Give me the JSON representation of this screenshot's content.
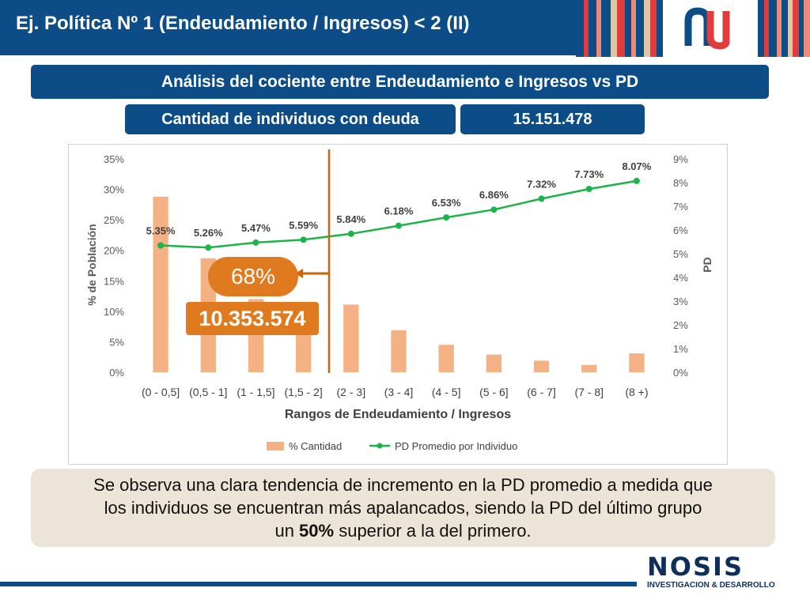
{
  "slide": {
    "title": "Ej. Política Nº 1 (Endeudamiento / Ingresos) < 2 (II)",
    "subtitle": "Análisis del cociente entre Endeudamiento e Ingresos vs PD",
    "count_label": "Cantidad de individuos con deuda",
    "count_value": "15.151.478",
    "callout_percent": "68%",
    "callout_count": "10.353.574",
    "conclusion_line1": "Se observa una clara tendencia de incremento en la PD promedio a medida que",
    "conclusion_line2": "los individuos se encuentran más apalancados, siendo la PD del último grupo",
    "conclusion_pre": "un ",
    "conclusion_bold": "50%",
    "conclusion_post": " superior a la del primero.",
    "footer_brand": "NOSIS",
    "footer_tagline": "INVESTIGACION & DESARROLLO"
  },
  "colors": {
    "navy": "#0d4d87",
    "bar": "#f4b183",
    "line": "#1db34b",
    "callout": "#c9650f",
    "callout_bg": "#e07a1f",
    "conclusion_bg": "#ece4d6",
    "stripe_red": "#e03c3c",
    "stripe_salmon": "#ef8a78",
    "stripe_beige": "#d9c9a8"
  },
  "chart_data": {
    "type": "bar",
    "categories": [
      "(0 - 0,5]",
      "(0,5 - 1]",
      "(1 - 1,5]",
      "(1,5 - 2]",
      "(2 - 3]",
      "(3 - 4]",
      "(4 - 5]",
      "(5 - 6]",
      "(6 - 7]",
      "(7 - 8]",
      "(8 +)"
    ],
    "series": [
      {
        "name": "% Cantidad",
        "type": "bar",
        "axis": "left",
        "values": [
          28.8,
          18.7,
          12.0,
          8.0,
          11.1,
          6.9,
          4.5,
          2.9,
          1.9,
          1.2,
          3.1
        ]
      },
      {
        "name": "PD Promedio por Individuo",
        "type": "line",
        "axis": "right",
        "values": [
          5.35,
          5.26,
          5.47,
          5.59,
          5.84,
          6.18,
          6.53,
          6.86,
          7.32,
          7.73,
          8.07
        ],
        "labels": [
          "5.35%",
          "5.26%",
          "5.47%",
          "5.59%",
          "5.84%",
          "6.18%",
          "6.53%",
          "6.86%",
          "7.32%",
          "7.73%",
          "8.07%"
        ]
      }
    ],
    "xlabel": "Rangos de Endeudamiento / Ingresos",
    "ylabel": "% de Población",
    "y2label": "PD",
    "ylim": [
      0,
      35
    ],
    "y2lim": [
      0,
      9
    ],
    "y_ticks": [
      "0%",
      "5%",
      "10%",
      "15%",
      "20%",
      "25%",
      "30%",
      "35%"
    ],
    "y2_ticks": [
      "0%",
      "1%",
      "2%",
      "3%",
      "4%",
      "5%",
      "6%",
      "7%",
      "8%",
      "9%"
    ],
    "legend_position": "bottom",
    "grid": false
  }
}
